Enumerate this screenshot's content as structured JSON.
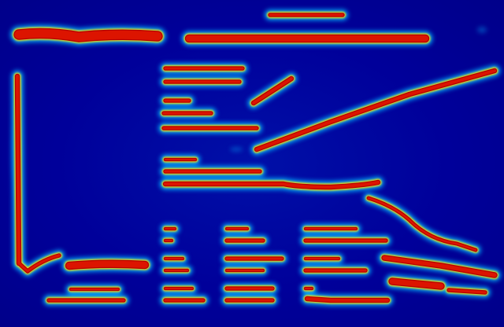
{
  "image": {
    "kind": "heatmap-overlay",
    "colormap": "jet",
    "palette": {
      "background": "#00008f",
      "background_light": "#0010a8",
      "glow": "#00b4ff",
      "halo": "#ffe600",
      "hot": "#b40000",
      "core": "#dc1400"
    }
  }
}
